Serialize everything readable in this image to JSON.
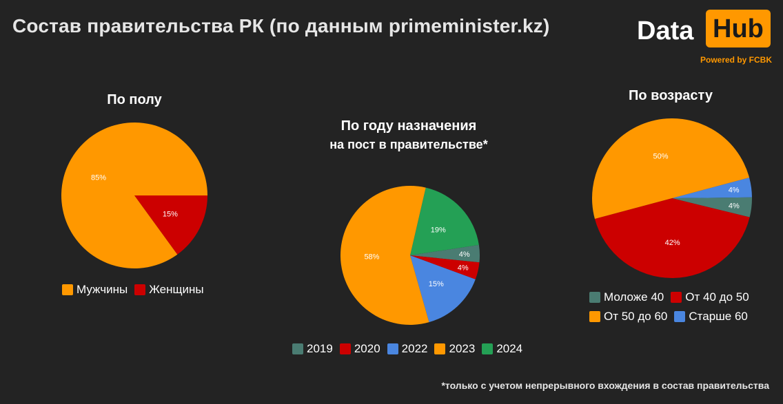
{
  "header": {
    "title": "Состав правительства РК (по данным primeminister.kz)"
  },
  "logo": {
    "data_text": "Data",
    "hub_text": "Hub",
    "powered_text": "Powered by FCBK",
    "accent_color": "#ff9800"
  },
  "footnote": "*только с учетом непрерывного вхождения в состав правительства",
  "chart_data": [
    {
      "id": "gender",
      "type": "pie",
      "title": "По полу",
      "subtitle": "",
      "start_angle_deg": 0,
      "slices": [
        {
          "label": "Женщины",
          "value": 15,
          "display": "15%",
          "color": "#cc0000"
        },
        {
          "label": "Мужчины",
          "value": 85,
          "display": "85%",
          "color": "#ff9800"
        }
      ],
      "legend": [
        {
          "label": "Мужчины",
          "color": "#ff9800"
        },
        {
          "label": "Женщины",
          "color": "#cc0000"
        }
      ]
    },
    {
      "id": "year",
      "type": "pie",
      "title": "По году назначения",
      "subtitle": "на пост в правительстве*",
      "start_angle_deg": -77,
      "slices": [
        {
          "label": "2024",
          "value": 19,
          "display": "19%",
          "color": "#24a055"
        },
        {
          "label": "2019",
          "value": 4,
          "display": "4%",
          "color": "#4a7c72"
        },
        {
          "label": "2020",
          "value": 4,
          "display": "4%",
          "color": "#cc0000"
        },
        {
          "label": "2022",
          "value": 15,
          "display": "15%",
          "color": "#4a86e0"
        },
        {
          "label": "2023",
          "value": 58,
          "display": "58%",
          "color": "#ff9800"
        }
      ],
      "legend": [
        {
          "label": "2019",
          "color": "#4a7c72"
        },
        {
          "label": "2020",
          "color": "#cc0000"
        },
        {
          "label": "2022",
          "color": "#4a86e0"
        },
        {
          "label": "2023",
          "color": "#ff9800"
        },
        {
          "label": "2024",
          "color": "#24a055"
        }
      ]
    },
    {
      "id": "age",
      "type": "pie",
      "title": "По возрасту",
      "subtitle": "",
      "start_angle_deg": -15,
      "slices": [
        {
          "label": "Старше 60",
          "value": 4,
          "display": "4%",
          "color": "#4a86e0"
        },
        {
          "label": "Моложе 40",
          "value": 4,
          "display": "4%",
          "color": "#4a7c72"
        },
        {
          "label": "От 40 до 50",
          "value": 42,
          "display": "42%",
          "color": "#cc0000"
        },
        {
          "label": "От 50 до 60",
          "value": 50,
          "display": "50%",
          "color": "#ff9800"
        }
      ],
      "legend": [
        {
          "label": "Моложе 40",
          "color": "#4a7c72"
        },
        {
          "label": "От 40 до 50",
          "color": "#cc0000"
        },
        {
          "label": "От 50 до 60",
          "color": "#ff9800"
        },
        {
          "label": "Старше 60",
          "color": "#4a86e0"
        }
      ]
    }
  ]
}
